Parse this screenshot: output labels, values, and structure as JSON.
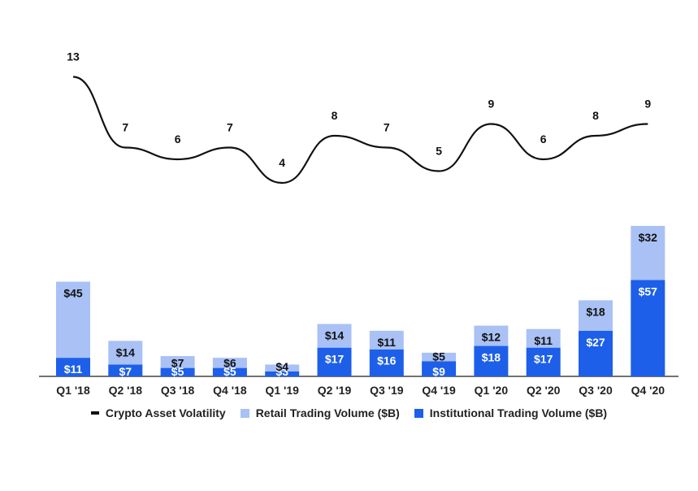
{
  "colors": {
    "retail": "#a9c1f5",
    "institutional": "#1d5fe9",
    "volatility": "#111111",
    "axis": "#444444",
    "text": "#222222",
    "bar_label_on_dark": "#ffffff"
  },
  "chart_data": {
    "type": "bar",
    "stacked": true,
    "title": "",
    "xlabel": "",
    "ylabel": "",
    "categories": [
      "Q1 '18",
      "Q2 '18",
      "Q3 '18",
      "Q4 '18",
      "Q1 '19",
      "Q2 '19",
      "Q3 '19",
      "Q4 '19",
      "Q1 '20",
      "Q2 '20",
      "Q3 '20",
      "Q4 '20"
    ],
    "series": [
      {
        "name": "Institutional Trading Volume ($B)",
        "type": "bar",
        "values": [
          11,
          7,
          5,
          5,
          3,
          17,
          16,
          9,
          18,
          17,
          27,
          57
        ],
        "labels": [
          "$11",
          "$7",
          "$5",
          "$5",
          "$3",
          "$17",
          "$16",
          "$9",
          "$18",
          "$17",
          "$27",
          "$57"
        ]
      },
      {
        "name": "Retail Trading Volume ($B)",
        "type": "bar",
        "values": [
          45,
          14,
          7,
          6,
          4,
          14,
          11,
          5,
          12,
          11,
          18,
          32
        ],
        "labels": [
          "$45",
          "$14",
          "$7",
          "$6",
          "$4",
          "$14",
          "$11",
          "$5",
          "$12",
          "$11",
          "$18",
          "$32"
        ]
      },
      {
        "name": "Crypto Asset Volatility",
        "type": "line",
        "smooth": true,
        "values": [
          13,
          7,
          6,
          7,
          4,
          8,
          7,
          5,
          9,
          6,
          8,
          9
        ],
        "labels": [
          "13",
          "7",
          "6",
          "7",
          "4",
          "8",
          "7",
          "5",
          "9",
          "6",
          "8",
          "9"
        ]
      }
    ],
    "legend": {
      "position": "bottom",
      "entries": [
        "Crypto Asset Volatility",
        "Retail Trading Volume ($B)",
        "Institutional Trading Volume ($B)"
      ]
    },
    "grid": false
  }
}
